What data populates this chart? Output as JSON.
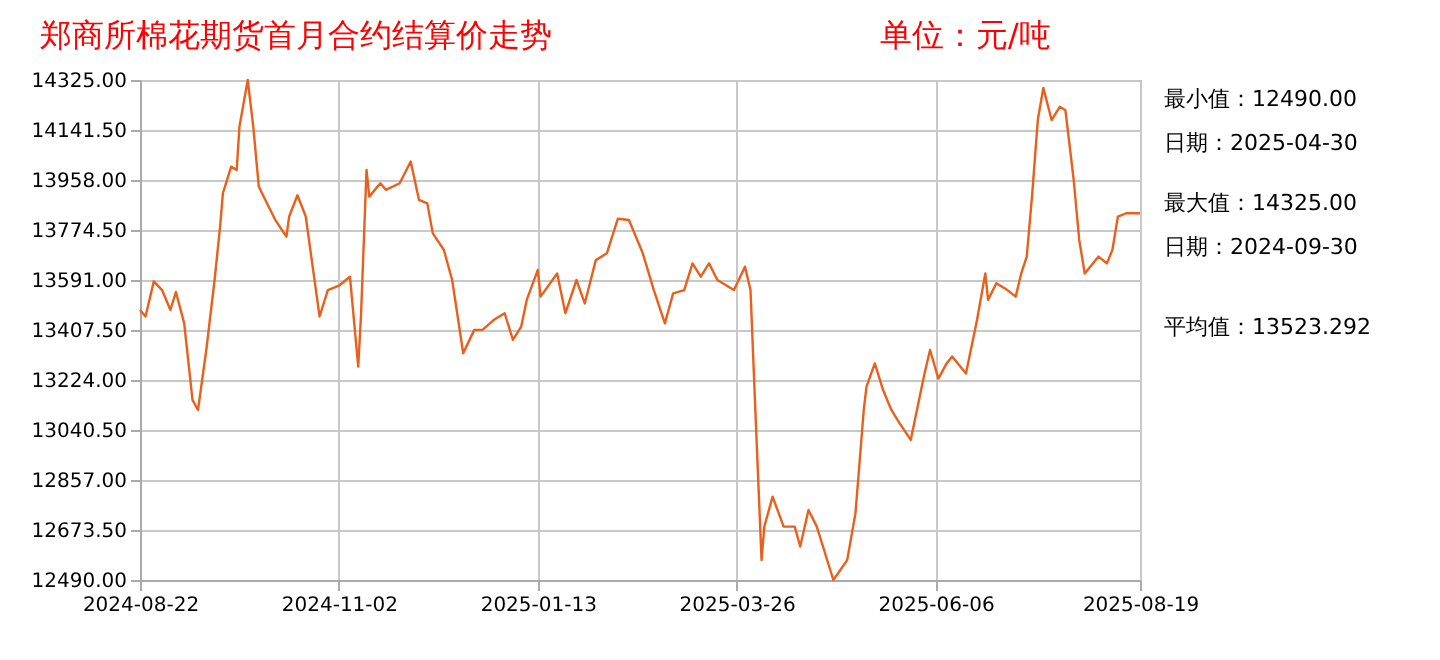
{
  "chart_data": {
    "type": "line",
    "title": "郑商所棉花期货首月合约结算价走势",
    "subtitle": "单位：元/吨",
    "x": [
      "2024-08-22",
      "2024-08-24",
      "2024-08-27",
      "2024-08-30",
      "2024-09-02",
      "2024-09-04",
      "2024-09-07",
      "2024-09-10",
      "2024-09-12",
      "2024-09-15",
      "2024-09-18",
      "2024-09-20",
      "2024-09-21",
      "2024-09-24",
      "2024-09-26",
      "2024-09-27",
      "2024-09-30",
      "2024-10-02",
      "2024-10-04",
      "2024-10-07",
      "2024-10-10",
      "2024-10-14",
      "2024-10-15",
      "2024-10-18",
      "2024-10-21",
      "2024-10-26",
      "2024-10-29",
      "2024-11-02",
      "2024-11-06",
      "2024-11-09",
      "2024-11-10",
      "2024-11-12",
      "2024-11-13",
      "2024-11-17",
      "2024-11-19",
      "2024-11-24",
      "2024-11-28",
      "2024-12-01",
      "2024-12-04",
      "2024-12-06",
      "2024-12-10",
      "2024-12-13",
      "2024-12-17",
      "2024-12-21",
      "2024-12-24",
      "2024-12-28",
      "2025-01-01",
      "2025-01-04",
      "2025-01-07",
      "2025-01-09",
      "2025-01-13",
      "2025-01-14",
      "2025-01-20",
      "2025-01-23",
      "2025-01-27",
      "2025-01-30",
      "2025-02-03",
      "2025-02-07",
      "2025-02-11",
      "2025-02-15",
      "2025-02-20",
      "2025-02-24",
      "2025-02-28",
      "2025-03-03",
      "2025-03-07",
      "2025-03-10",
      "2025-03-13",
      "2025-03-16",
      "2025-03-19",
      "2025-03-25",
      "2025-03-29",
      "2025-03-31",
      "2025-04-02",
      "2025-04-04",
      "2025-04-05",
      "2025-04-08",
      "2025-04-12",
      "2025-04-16",
      "2025-04-18",
      "2025-04-21",
      "2025-04-24",
      "2025-04-30",
      "2025-05-05",
      "2025-05-08",
      "2025-05-11",
      "2025-05-12",
      "2025-05-15",
      "2025-05-18",
      "2025-05-21",
      "2025-05-24",
      "2025-05-28",
      "2025-06-02",
      "2025-06-04",
      "2025-06-07",
      "2025-06-10",
      "2025-06-12",
      "2025-06-17",
      "2025-06-21",
      "2025-06-24",
      "2025-06-25",
      "2025-06-28",
      "2025-07-02",
      "2025-07-05",
      "2025-07-07",
      "2025-07-09",
      "2025-07-11",
      "2025-07-13",
      "2025-07-15",
      "2025-07-18",
      "2025-07-21",
      "2025-07-23",
      "2025-07-26",
      "2025-07-28",
      "2025-07-30",
      "2025-08-04",
      "2025-08-07",
      "2025-08-09",
      "2025-08-11",
      "2025-08-14",
      "2025-08-19"
    ],
    "series": [
      {
        "color": "#e8601c",
        "values": [
          13481,
          13457,
          13586,
          13554,
          13481,
          13547,
          13432,
          13151,
          13114,
          13334,
          13591,
          13787,
          13909,
          14007,
          13995,
          14154,
          14325,
          14154,
          13934,
          13872,
          13811,
          13750,
          13824,
          13902,
          13824,
          13457,
          13554,
          13570,
          13603,
          13273,
          13460,
          13995,
          13897,
          13946,
          13922,
          13946,
          14026,
          13885,
          13872,
          13762,
          13701,
          13591,
          13322,
          13408,
          13408,
          13444,
          13469,
          13371,
          13420,
          13518,
          13628,
          13530,
          13615,
          13469,
          13591,
          13505,
          13664,
          13689,
          13816,
          13811,
          13689,
          13554,
          13432,
          13542,
          13554,
          13652,
          13603,
          13652,
          13591,
          13554,
          13640,
          13554,
          13053,
          12563,
          12686,
          12796,
          12686,
          12686,
          12613,
          12747,
          12686,
          12490,
          12563,
          12735,
          13114,
          13200,
          13285,
          13187,
          13114,
          13065,
          13004,
          13248,
          13334,
          13229,
          13285,
          13310,
          13248,
          13444,
          13615,
          13518,
          13579,
          13554,
          13530,
          13615,
          13677,
          13909,
          14178,
          14296,
          14178,
          14227,
          14214,
          13958,
          13738,
          13615,
          13677,
          13652,
          13701,
          13824,
          13836,
          13836
        ]
      }
    ],
    "xlim": [
      "2024-08-22",
      "2025-08-19"
    ],
    "xticks": [
      "2024-08-22",
      "2024-11-02",
      "2025-01-13",
      "2025-03-26",
      "2025-06-06",
      "2025-08-19"
    ],
    "ylim": [
      12490,
      14325
    ],
    "yticks": [
      {
        "value": 12490,
        "label": "12490.00"
      },
      {
        "value": 12673.5,
        "label": "12673.50"
      },
      {
        "value": 12857,
        "label": "12857.00"
      },
      {
        "value": 13040.5,
        "label": "13040.50"
      },
      {
        "value": 13224,
        "label": "13224.00"
      },
      {
        "value": 13407.5,
        "label": "13407.50"
      },
      {
        "value": 13591,
        "label": "13591.00"
      },
      {
        "value": 13774.5,
        "label": "13774.50"
      },
      {
        "value": 13958,
        "label": "13958.00"
      },
      {
        "value": 14141.5,
        "label": "14141.50"
      },
      {
        "value": 14325,
        "label": "14325.00"
      }
    ],
    "grid": true,
    "marker": "none",
    "line_style": "solid",
    "annotations": [
      "最小值：12490.00",
      "  日期：2025-04-30",
      "最大值：14325.00",
      "  日期：2024-09-30",
      "平均值：13523.292"
    ]
  }
}
